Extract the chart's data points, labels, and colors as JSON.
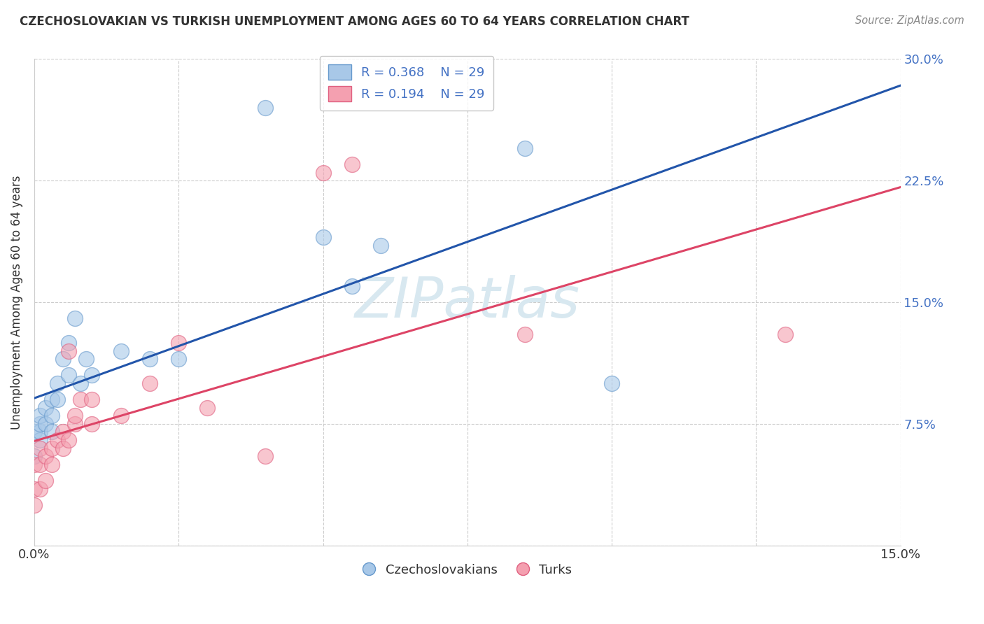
{
  "title": "CZECHOSLOVAKIAN VS TURKISH UNEMPLOYMENT AMONG AGES 60 TO 64 YEARS CORRELATION CHART",
  "source": "Source: ZipAtlas.com",
  "ylabel": "Unemployment Among Ages 60 to 64 years",
  "xlim": [
    0.0,
    0.15
  ],
  "ylim": [
    0.0,
    0.3
  ],
  "xticks": [
    0.0,
    0.025,
    0.05,
    0.075,
    0.1,
    0.125,
    0.15
  ],
  "yticks": [
    0.0,
    0.075,
    0.15,
    0.225,
    0.3
  ],
  "r_czech": 0.368,
  "n_czech": 29,
  "r_turk": 0.194,
  "n_turk": 29,
  "czech_color": "#a8c8e8",
  "turk_color": "#f4a0b0",
  "czech_edge_color": "#6699cc",
  "turk_edge_color": "#e06080",
  "trend_czech_color": "#2255aa",
  "trend_turk_color": "#dd4466",
  "watermark_color": "#d8e8f0",
  "czech_x": [
    0.0,
    0.0,
    0.001,
    0.001,
    0.001,
    0.001,
    0.002,
    0.002,
    0.003,
    0.003,
    0.003,
    0.004,
    0.004,
    0.005,
    0.006,
    0.006,
    0.007,
    0.008,
    0.009,
    0.01,
    0.015,
    0.02,
    0.025,
    0.04,
    0.05,
    0.055,
    0.06,
    0.085,
    0.1
  ],
  "czech_y": [
    0.055,
    0.07,
    0.065,
    0.07,
    0.075,
    0.08,
    0.075,
    0.085,
    0.07,
    0.08,
    0.09,
    0.09,
    0.1,
    0.115,
    0.105,
    0.125,
    0.14,
    0.1,
    0.115,
    0.105,
    0.12,
    0.115,
    0.115,
    0.27,
    0.19,
    0.16,
    0.185,
    0.245,
    0.1
  ],
  "turk_x": [
    0.0,
    0.0,
    0.0,
    0.001,
    0.001,
    0.001,
    0.002,
    0.002,
    0.003,
    0.003,
    0.004,
    0.005,
    0.005,
    0.006,
    0.006,
    0.007,
    0.007,
    0.008,
    0.01,
    0.01,
    0.015,
    0.02,
    0.025,
    0.03,
    0.04,
    0.05,
    0.055,
    0.085,
    0.13
  ],
  "turk_y": [
    0.025,
    0.035,
    0.05,
    0.035,
    0.05,
    0.06,
    0.04,
    0.055,
    0.05,
    0.06,
    0.065,
    0.06,
    0.07,
    0.065,
    0.12,
    0.075,
    0.08,
    0.09,
    0.075,
    0.09,
    0.08,
    0.1,
    0.125,
    0.085,
    0.055,
    0.23,
    0.235,
    0.13,
    0.13
  ],
  "legend_czech_label": "Czechoslovakians",
  "legend_turk_label": "Turks",
  "background_color": "#ffffff",
  "grid_color": "#cccccc",
  "title_color": "#333333",
  "source_color": "#888888",
  "yaxis_label_color": "#4472c4",
  "xaxis_label_color": "#333333"
}
